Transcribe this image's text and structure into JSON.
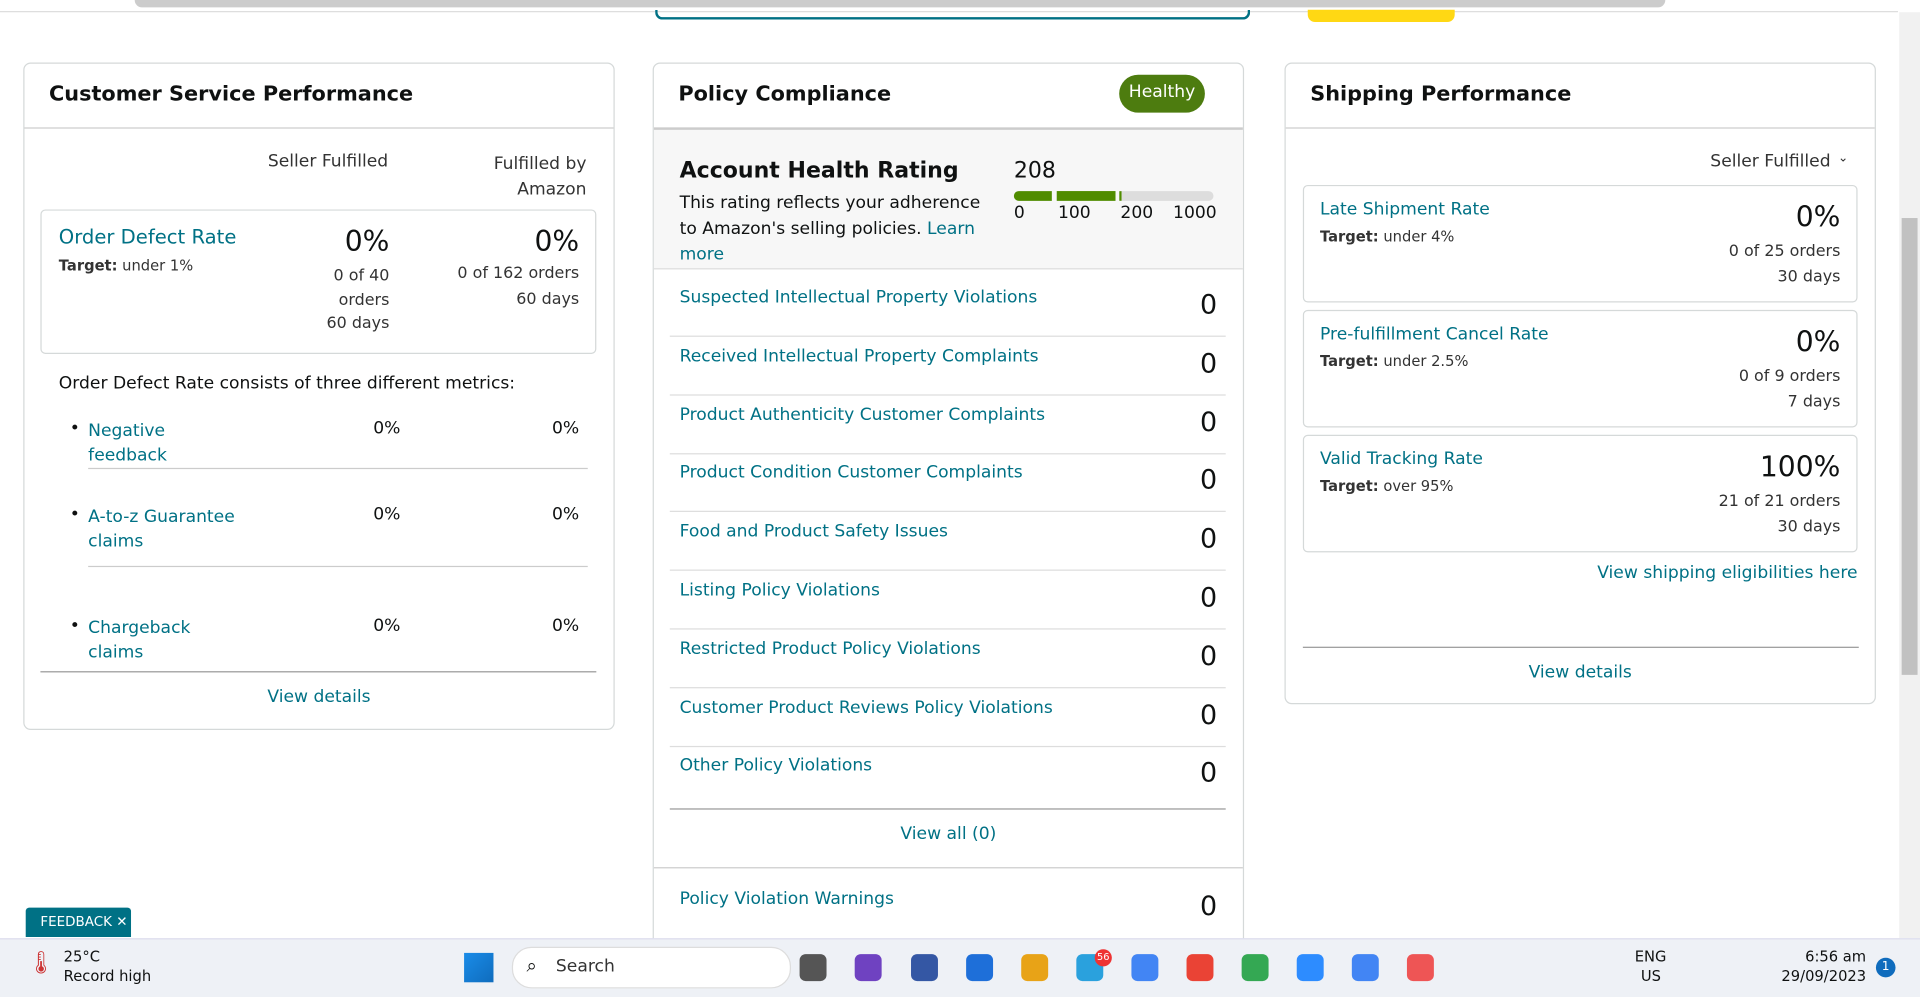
{
  "customer_service": {
    "title": "Customer Service Performance",
    "col_seller": "Seller Fulfilled",
    "col_fba": "Fulfilled by Amazon",
    "odr": {
      "name": "Order Defect Rate",
      "target_label": "Target:",
      "target": "under 1%",
      "seller": {
        "rate": "0%",
        "orders": "0 of 40 orders",
        "period": "60 days"
      },
      "fba": {
        "rate": "0%",
        "orders": "0 of 162 orders",
        "period": "60 days"
      }
    },
    "intro": "Order Defect Rate consists of three different metrics:",
    "metrics": [
      {
        "name": "Negative feedback",
        "seller": "0%",
        "fba": "0%"
      },
      {
        "name": "A-to-z Guarantee claims",
        "seller": "0%",
        "fba": "0%"
      },
      {
        "name": "Chargeback claims",
        "seller": "0%",
        "fba": "0%"
      }
    ],
    "link": "View details"
  },
  "policy": {
    "title": "Policy Compliance",
    "badge": "Healthy",
    "rating_title": "Account Health Rating",
    "score": 208,
    "description": "This rating reflects your adherence to Amazon's selling policies.",
    "learn_more": "Learn more",
    "scale": [
      0,
      100,
      200,
      1000
    ],
    "rows": [
      {
        "name": "Suspected Intellectual Property Violations",
        "count": 0
      },
      {
        "name": "Received Intellectual Property Complaints",
        "count": 0
      },
      {
        "name": "Product Authenticity Customer Complaints",
        "count": 0
      },
      {
        "name": "Product Condition Customer Complaints",
        "count": 0
      },
      {
        "name": "Food and Product Safety Issues",
        "count": 0
      },
      {
        "name": "Listing Policy Violations",
        "count": 0
      },
      {
        "name": "Restricted Product Policy Violations",
        "count": 0
      },
      {
        "name": "Customer Product Reviews Policy Violations",
        "count": 0
      },
      {
        "name": "Other Policy Violations",
        "count": 0
      }
    ],
    "view_all": "View all (0)",
    "warnings": {
      "name": "Policy Violation Warnings",
      "count": 0
    }
  },
  "shipping": {
    "title": "Shipping Performance",
    "filter": "Seller Fulfilled",
    "metrics": [
      {
        "name": "Late Shipment Rate",
        "target_label": "Target:",
        "target": "under 4%",
        "rate": "0%",
        "orders": "0 of 25 orders",
        "period": "30 days"
      },
      {
        "name": "Pre-fulfillment Cancel Rate",
        "target_label": "Target:",
        "target": "under 2.5%",
        "rate": "0%",
        "orders": "0 of 9 orders",
        "period": "7 days"
      },
      {
        "name": "Valid Tracking Rate",
        "target_label": "Target:",
        "target": "over 95%",
        "rate": "100%",
        "orders": "21 of 21 orders",
        "period": "30 days"
      }
    ],
    "eligibility": "View shipping eligibilities here",
    "link": "View details"
  },
  "feedback": "FEEDBACK",
  "taskbar": {
    "temp": "25°C",
    "weather": "Record high",
    "search": "Search",
    "telegram_badge": "56",
    "lang": "ENG",
    "region": "US",
    "time": "6:56 am",
    "date": "29/09/2023",
    "notifications": "1"
  }
}
